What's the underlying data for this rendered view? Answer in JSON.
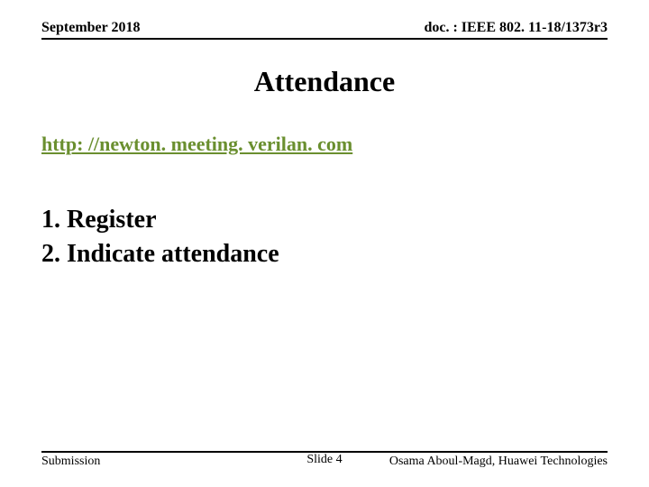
{
  "header": {
    "date": "September 2018",
    "docref": "doc. : IEEE 802. 11-18/1373r3"
  },
  "title": "Attendance",
  "link": {
    "text": "http: //newton. meeting. verilan. com",
    "color": "#6a8f2f"
  },
  "steps": {
    "step1": "1. Register",
    "step2": "2. Indicate attendance"
  },
  "footer": {
    "left": "Submission",
    "center": "Slide 4",
    "right": "Osama Aboul-Magd, Huawei Technologies"
  },
  "styling": {
    "background_color": "#ffffff",
    "text_color": "#000000",
    "rule_color": "#000000",
    "title_fontsize": 32,
    "header_fontsize": 16,
    "link_fontsize": 22,
    "steps_fontsize": 28,
    "footer_fontsize": 14,
    "font_family": "Times New Roman"
  }
}
